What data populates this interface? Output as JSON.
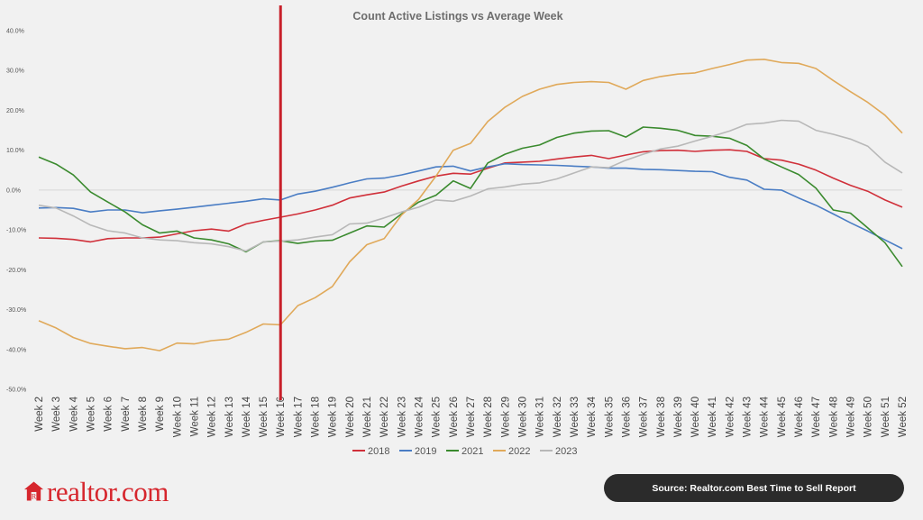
{
  "brand": {
    "logo_text": "realtor.com",
    "logo_color": "#d6262d"
  },
  "source_badge": {
    "text": "Source: Realtor.com Best Time to Sell Report"
  },
  "chart_data": {
    "type": "line",
    "title": "Count Active Listings vs Average Week",
    "xlabel": "",
    "ylabel": "",
    "ylim": [
      -50,
      40
    ],
    "y_ticks": [
      "40.0%",
      "30.0%",
      "20.0%",
      "10.0%",
      "0.0%",
      "-10.0%",
      "-20.0%",
      "-30.0%",
      "-40.0%",
      "-50.0%"
    ],
    "y_tick_values": [
      40,
      30,
      20,
      10,
      0,
      -10,
      -20,
      -30,
      -40,
      -50
    ],
    "grid": false,
    "legend_position": "bottom",
    "categories": [
      "Week 2",
      "Week 3",
      "Week 4",
      "Week 5",
      "Week 6",
      "Week 7",
      "Week 8",
      "Week 9",
      "Week 10",
      "Week 11",
      "Week 12",
      "Week 13",
      "Week 14",
      "Week 15",
      "Week 16",
      "Week 17",
      "Week 18",
      "Week 19",
      "Week 20",
      "Week 21",
      "Week 22",
      "Week 23",
      "Week 24",
      "Week 25",
      "Week 26",
      "Week 27",
      "Week 28",
      "Week 29",
      "Week 30",
      "Week 31",
      "Week 32",
      "Week 33",
      "Week 34",
      "Week 35",
      "Week 36",
      "Week 37",
      "Week 38",
      "Week 39",
      "Week 40",
      "Week 41",
      "Week 42",
      "Week 43",
      "Week 44",
      "Week 45",
      "Week 46",
      "Week 47",
      "Week 48",
      "Week 49",
      "Week 50",
      "Week 51",
      "Week 52"
    ],
    "marker_line": {
      "category": "Week 16",
      "color": "#c8202a"
    },
    "series": [
      {
        "name": "2018",
        "color": "#d0303a",
        "values": [
          -12.0,
          -12.1,
          -12.4,
          -13.0,
          -12.2,
          -12.0,
          -12.0,
          -11.8,
          -11.0,
          -10.2,
          -9.8,
          -10.3,
          -8.5,
          -7.6,
          -6.8,
          -6.0,
          -5.0,
          -3.8,
          -2.0,
          -1.2,
          -0.5,
          1.0,
          2.3,
          3.5,
          4.2,
          4.0,
          5.5,
          6.8,
          7.0,
          7.2,
          7.8,
          8.3,
          8.7,
          7.9,
          8.8,
          9.6,
          9.9,
          10.0,
          9.7,
          10.0,
          10.1,
          9.7,
          7.9,
          7.5,
          6.5,
          5.0,
          3.0,
          1.2,
          -0.3,
          -2.5,
          -4.3
        ]
      },
      {
        "name": "2019",
        "color": "#4a7dc4",
        "values": [
          -4.5,
          -4.4,
          -4.6,
          -5.5,
          -5.0,
          -5.0,
          -5.7,
          -5.2,
          -4.8,
          -4.3,
          -3.8,
          -3.3,
          -2.8,
          -2.2,
          -2.5,
          -1.0,
          -0.3,
          0.7,
          1.8,
          2.8,
          3.0,
          3.8,
          4.8,
          5.8,
          6.0,
          4.8,
          5.8,
          6.6,
          6.4,
          6.3,
          6.2,
          6.0,
          5.8,
          5.5,
          5.5,
          5.2,
          5.1,
          4.9,
          4.7,
          4.6,
          3.2,
          2.5,
          0.2,
          0.0,
          -2.0,
          -3.8,
          -6.0,
          -8.2,
          -10.3,
          -12.5,
          -14.7
        ]
      },
      {
        "name": "2021",
        "color": "#3a8a2e",
        "values": [
          8.3,
          6.5,
          3.8,
          -0.5,
          -3.0,
          -5.5,
          -8.7,
          -10.8,
          -10.3,
          -12.0,
          -12.5,
          -13.5,
          -15.5,
          -13.0,
          -12.7,
          -13.4,
          -12.8,
          -12.6,
          -10.8,
          -9.0,
          -9.3,
          -6.0,
          -3.0,
          -1.3,
          2.3,
          0.4,
          6.8,
          9.0,
          10.5,
          11.3,
          13.2,
          14.3,
          14.8,
          14.9,
          13.3,
          15.8,
          15.5,
          15.0,
          13.7,
          13.5,
          13.0,
          11.2,
          7.8,
          5.8,
          3.9,
          0.5,
          -5.0,
          -5.8,
          -9.5,
          -13.2,
          -19.2
        ]
      },
      {
        "name": "2022",
        "color": "#e0a95a",
        "values": [
          -32.8,
          -34.6,
          -37.0,
          -38.5,
          -39.2,
          -39.8,
          -39.5,
          -40.3,
          -38.4,
          -38.6,
          -37.8,
          -37.4,
          -35.7,
          -33.6,
          -33.8,
          -29.0,
          -27.0,
          -24.2,
          -18.0,
          -13.7,
          -12.2,
          -6.3,
          -2.3,
          3.5,
          10.0,
          11.7,
          17.2,
          20.8,
          23.5,
          25.3,
          26.5,
          27.0,
          27.2,
          27.0,
          25.3,
          27.5,
          28.5,
          29.1,
          29.4,
          30.5,
          31.5,
          32.6,
          32.8,
          32.0,
          31.8,
          30.5,
          27.5,
          24.7,
          22.0,
          18.8,
          14.3
        ]
      },
      {
        "name": "2023",
        "color": "#b8b8b8",
        "values": [
          -3.8,
          -4.5,
          -6.5,
          -8.8,
          -10.2,
          -10.8,
          -12.0,
          -12.5,
          -12.7,
          -13.2,
          -13.5,
          -14.2,
          -15.3,
          -13.0,
          -12.8,
          -12.5,
          -11.8,
          -11.2,
          -8.5,
          -8.3,
          -7.0,
          -5.5,
          -4.3,
          -2.5,
          -2.8,
          -1.5,
          0.3,
          0.8,
          1.5,
          1.8,
          2.8,
          4.3,
          5.8,
          5.6,
          7.5,
          9.0,
          10.3,
          11.0,
          12.3,
          13.5,
          14.8,
          16.5,
          16.8,
          17.5,
          17.3,
          15.0,
          14.0,
          12.8,
          11.0,
          7.0,
          4.3
        ]
      }
    ]
  }
}
